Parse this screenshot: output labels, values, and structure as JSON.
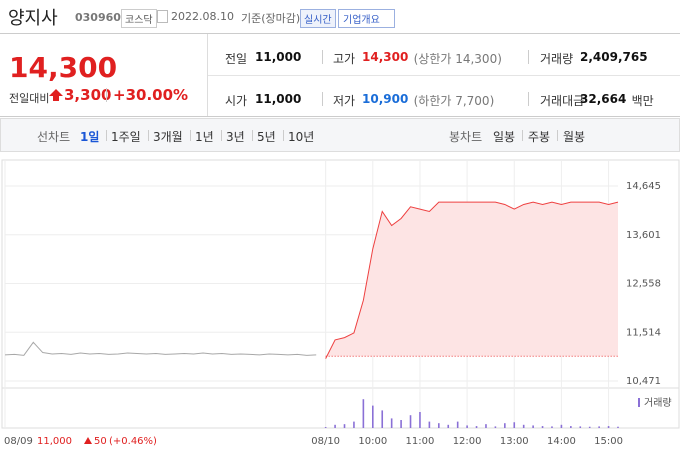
{
  "header": {
    "name": "양지사",
    "code": "030960",
    "market": "코스닥",
    "date": "2022.08.10",
    "basis": "기준(장마감)",
    "realtime": "실시간",
    "company_info": "기업개요"
  },
  "quote": {
    "price": "14,300",
    "change_label": "전일대비",
    "change": "3,300",
    "change_pct": "+30.00%",
    "stats": [
      {
        "label": "전일",
        "value": "11,000"
      },
      {
        "label": "고가",
        "value": "14,300",
        "note": "(상한가 14,300)"
      },
      {
        "label": "거래량",
        "value": "2,409,765"
      },
      {
        "label": "시가",
        "value": "11,000"
      },
      {
        "label": "저가",
        "value": "10,900",
        "note": "(하한가 7,700)"
      },
      {
        "label": "거래대금",
        "value": "32,664",
        "unit": "백만"
      }
    ]
  },
  "tabs": {
    "line_label": "선차트",
    "line": [
      "1일",
      "1주일",
      "3개월",
      "1년",
      "3년",
      "5년",
      "10년"
    ],
    "candle_label": "봉차트",
    "candle": [
      "일봉",
      "주봉",
      "월봉"
    ]
  },
  "chart_data": {
    "type": "line",
    "categories": [
      "08/09",
      null,
      null,
      null,
      null,
      null,
      null,
      null,
      null,
      null,
      null,
      null,
      null,
      null,
      null,
      null,
      null,
      null,
      null,
      null,
      null,
      null,
      null,
      null,
      null,
      null,
      null,
      null,
      null,
      null,
      null,
      null,
      null,
      null,
      "08/10",
      null,
      null,
      null,
      null,
      "10:00",
      null,
      null,
      null,
      null,
      "11:00",
      null,
      null,
      null,
      null,
      "12:00",
      null,
      null,
      null,
      null,
      "13:00",
      null,
      null,
      null,
      null,
      "14:00",
      null,
      null,
      null,
      null,
      "15:00",
      null
    ],
    "values": [
      11030,
      11040,
      11020,
      11300,
      11080,
      11050,
      11060,
      11040,
      11070,
      11050,
      11060,
      11040,
      11050,
      11070,
      11060,
      11050,
      11060,
      11040,
      11050,
      11060,
      11050,
      11070,
      11050,
      11060,
      11040,
      11050,
      11040,
      11030,
      11050,
      11040,
      11030,
      11040,
      11020,
      11030,
      10950,
      11350,
      11400,
      11500,
      12200,
      13300,
      14100,
      13800,
      13950,
      14200,
      14150,
      14100,
      14300,
      14300,
      14300,
      14300,
      14300,
      14300,
      14300,
      14250,
      14150,
      14250,
      14300,
      14250,
      14300,
      14250,
      14300,
      14300,
      14300,
      14300,
      14250,
      14300
    ],
    "color": "#ee4040",
    "prev_color": "#a8a8a8",
    "area_color": "#fde4e4",
    "baseline": 11000,
    "ylim": [
      10471,
      14645
    ],
    "yticks": [
      {
        "value": 10471,
        "label": "10,471"
      },
      {
        "value": 11514,
        "label": "11,514"
      },
      {
        "value": 12558,
        "label": "12,558"
      },
      {
        "value": 13601,
        "label": "13,601"
      },
      {
        "value": 14645,
        "label": "14,645"
      }
    ],
    "grid": true,
    "volume": {
      "name": "거래량",
      "color": "#8a70d6",
      "ylim": [
        0,
        100
      ],
      "values": [
        0,
        0,
        0,
        0,
        0,
        0,
        0,
        0,
        0,
        0,
        0,
        0,
        0,
        0,
        0,
        0,
        0,
        0,
        0,
        0,
        0,
        0,
        0,
        0,
        0,
        0,
        0,
        0,
        0,
        0,
        0,
        0,
        0,
        0,
        3,
        10,
        12,
        20,
        90,
        70,
        55,
        30,
        25,
        40,
        50,
        20,
        15,
        10,
        20,
        8,
        6,
        12,
        5,
        15,
        18,
        10,
        8,
        6,
        5,
        10,
        6,
        5,
        4,
        5,
        6,
        4
      ]
    },
    "prev_day": {
      "close": "11,000",
      "change": "50",
      "pct": "(+0.46%)"
    }
  }
}
